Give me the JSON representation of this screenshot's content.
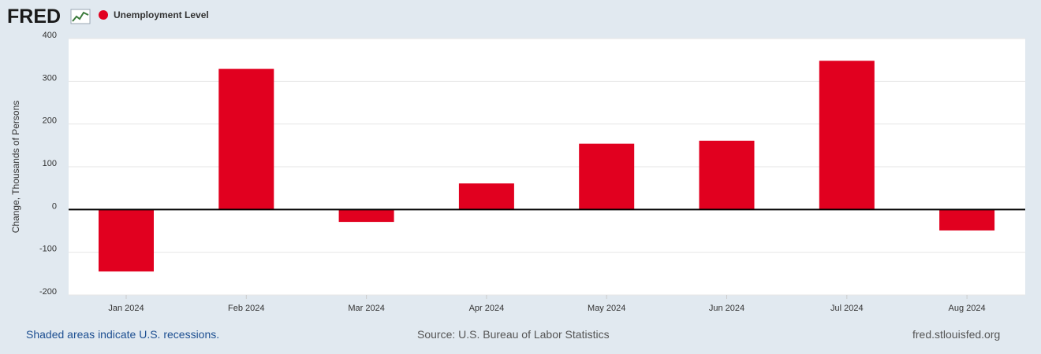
{
  "brand": {
    "logo_text": "FRED",
    "legend_marker_color": "#e1001f"
  },
  "chart_data": {
    "type": "bar",
    "title": "",
    "legend": [
      "Unemployment Level"
    ],
    "categories": [
      "Jan 2024",
      "Feb 2024",
      "Mar 2024",
      "Apr 2024",
      "May 2024",
      "Jun 2024",
      "Jul 2024",
      "Aug 2024"
    ],
    "series": [
      {
        "name": "Unemployment Level",
        "values": [
          -145,
          329,
          -29,
          61,
          154,
          161,
          348,
          -49
        ],
        "color": "#e1001f"
      }
    ],
    "xlabel": "",
    "ylabel": "Change, Thousands of Persons",
    "ylim": [
      -200,
      400
    ],
    "yticks": [
      400,
      300,
      200,
      100,
      0,
      -100,
      -200
    ],
    "grid": true
  },
  "footer": {
    "recession_note": "Shaded areas indicate U.S. recessions.",
    "source": "Source: U.S. Bureau of Labor Statistics",
    "site": "fred.stlouisfed.org"
  },
  "colors": {
    "page_bg": "#e1e9f0",
    "plot_bg": "#ffffff",
    "gridline": "#e6e6e6",
    "zero_line": "#000000",
    "link_blue": "#1d4f91",
    "text_gray": "#555555"
  }
}
